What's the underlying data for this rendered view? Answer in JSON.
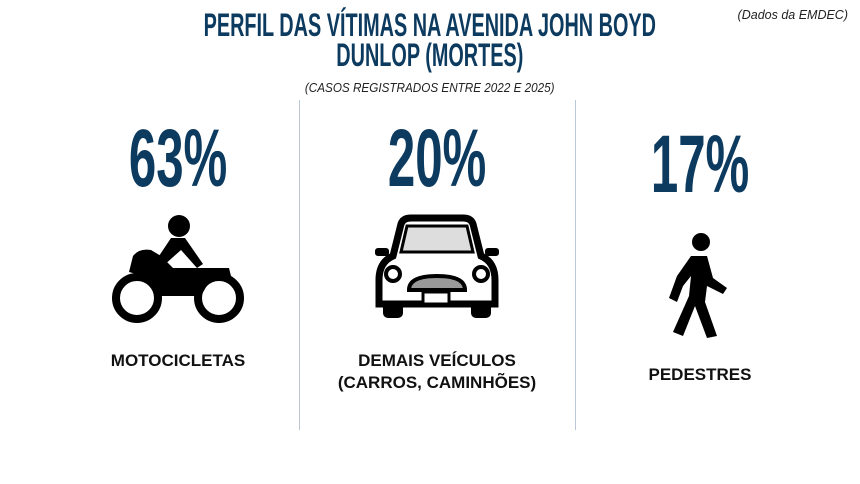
{
  "header": {
    "title_line1": "PERFIL DAS VÍTIMAS NA AVENIDA JOHN BOYD",
    "title_line2": "DUNLOP (MORTES)",
    "subtitle": "(CASOS REGISTRADOS ENTRE 2022 E 2025)",
    "source": "(Dados da EMDEC)"
  },
  "chart_data": {
    "type": "table",
    "title": "PERFIL DAS VÍTIMAS NA AVENIDA JOHN BOYD DUNLOP (MORTES)",
    "categories": [
      "MOTOCICLETAS",
      "DEMAIS VEÍCULOS (CARROS, CAMINHÕES)",
      "PEDESTRES"
    ],
    "values": [
      63,
      20,
      17
    ],
    "display": [
      "63%",
      "20%",
      "17%"
    ],
    "label_lines": [
      [
        "MOTOCICLETAS"
      ],
      [
        "DEMAIS VEÍCULOS",
        "(CARROS, CAMINHÕES)"
      ],
      [
        "PEDESTRES"
      ]
    ],
    "icons": [
      "motorcycle-icon",
      "car-icon",
      "pedestrian-icon"
    ],
    "accent": "#0d3b60"
  }
}
